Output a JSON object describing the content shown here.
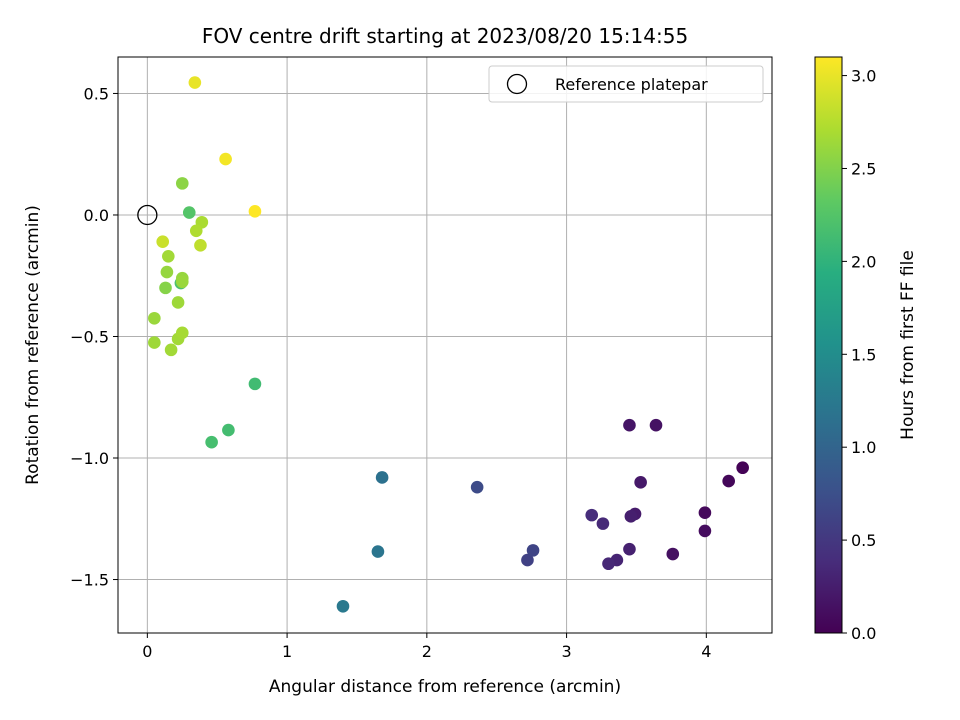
{
  "chart_data": {
    "type": "scatter",
    "title": "FOV centre drift starting at 2023/08/20 15:14:55",
    "xlabel": "Angular distance from reference (arcmin)",
    "ylabel": "Rotation from reference (arcmin)",
    "xlim": [
      -0.21,
      4.47
    ],
    "ylim": [
      -1.72,
      0.65
    ],
    "xticks": [
      0,
      1,
      2,
      3,
      4
    ],
    "xtick_labels": [
      "0",
      "1",
      "2",
      "3",
      "4"
    ],
    "yticks": [
      -1.5,
      -1.0,
      -0.5,
      0.0,
      0.5
    ],
    "ytick_labels": [
      "−1.5",
      "−1.0",
      "−0.5",
      "0.0",
      "0.5"
    ],
    "grid": true,
    "legend": {
      "position": "upper right",
      "entries": [
        "Reference platepar"
      ]
    },
    "reference_point": {
      "x": 0,
      "y": 0
    },
    "colorbar": {
      "label": "Hours from first FF file",
      "range": [
        0.0,
        3.1
      ],
      "ticks": [
        0.0,
        0.5,
        1.0,
        1.5,
        2.0,
        2.5,
        3.0
      ],
      "tick_labels": [
        "0.0",
        "0.5",
        "1.0",
        "1.5",
        "2.0",
        "2.5",
        "3.0"
      ],
      "colormap": "viridis"
    },
    "points": [
      {
        "x": 4.26,
        "y": -1.04,
        "hours": 0.02
      },
      {
        "x": 4.16,
        "y": -1.095,
        "hours": 0.05
      },
      {
        "x": 3.99,
        "y": -1.225,
        "hours": 0.07
      },
      {
        "x": 3.99,
        "y": -1.3,
        "hours": 0.1
      },
      {
        "x": 3.76,
        "y": -1.395,
        "hours": 0.13
      },
      {
        "x": 3.64,
        "y": -0.865,
        "hours": 0.15
      },
      {
        "x": 3.45,
        "y": -0.865,
        "hours": 0.18
      },
      {
        "x": 3.53,
        "y": -1.1,
        "hours": 0.21
      },
      {
        "x": 3.49,
        "y": -1.23,
        "hours": 0.23
      },
      {
        "x": 3.46,
        "y": -1.24,
        "hours": 0.26
      },
      {
        "x": 3.45,
        "y": -1.375,
        "hours": 0.28
      },
      {
        "x": 3.36,
        "y": -1.42,
        "hours": 0.31
      },
      {
        "x": 3.3,
        "y": -1.435,
        "hours": 0.34
      },
      {
        "x": 3.26,
        "y": -1.27,
        "hours": 0.36
      },
      {
        "x": 3.18,
        "y": -1.235,
        "hours": 0.39
      },
      {
        "x": 2.72,
        "y": -1.42,
        "hours": 0.6
      },
      {
        "x": 2.76,
        "y": -1.38,
        "hours": 0.63
      },
      {
        "x": 2.36,
        "y": -1.12,
        "hours": 0.7
      },
      {
        "x": 1.68,
        "y": -1.08,
        "hours": 1.15
      },
      {
        "x": 1.65,
        "y": -1.385,
        "hours": 1.2
      },
      {
        "x": 1.4,
        "y": -1.61,
        "hours": 1.25
      },
      {
        "x": 0.77,
        "y": -0.695,
        "hours": 2.12
      },
      {
        "x": 0.58,
        "y": -0.885,
        "hours": 2.14
      },
      {
        "x": 0.46,
        "y": -0.935,
        "hours": 2.16
      },
      {
        "x": 0.3,
        "y": 0.01,
        "hours": 2.25
      },
      {
        "x": 0.24,
        "y": -0.28,
        "hours": 2.2
      },
      {
        "x": 0.25,
        "y": 0.13,
        "hours": 2.55
      },
      {
        "x": 0.13,
        "y": -0.3,
        "hours": 2.52
      },
      {
        "x": 0.39,
        "y": -0.03,
        "hours": 2.7
      },
      {
        "x": 0.35,
        "y": -0.065,
        "hours": 2.72
      },
      {
        "x": 0.38,
        "y": -0.125,
        "hours": 2.8
      },
      {
        "x": 0.25,
        "y": -0.26,
        "hours": 2.6
      },
      {
        "x": 0.25,
        "y": -0.275,
        "hours": 2.62
      },
      {
        "x": 0.22,
        "y": -0.36,
        "hours": 2.64
      },
      {
        "x": 0.22,
        "y": -0.51,
        "hours": 2.66
      },
      {
        "x": 0.25,
        "y": -0.485,
        "hours": 2.68
      },
      {
        "x": 0.15,
        "y": -0.17,
        "hours": 2.66
      },
      {
        "x": 0.14,
        "y": -0.235,
        "hours": 2.6
      },
      {
        "x": 0.17,
        "y": -0.555,
        "hours": 2.66
      },
      {
        "x": 0.05,
        "y": -0.425,
        "hours": 2.62
      },
      {
        "x": 0.05,
        "y": -0.525,
        "hours": 2.64
      },
      {
        "x": 0.11,
        "y": -0.11,
        "hours": 2.85
      },
      {
        "x": 0.34,
        "y": 0.545,
        "hours": 3.0
      },
      {
        "x": 0.56,
        "y": 0.23,
        "hours": 3.05
      },
      {
        "x": 0.77,
        "y": 0.015,
        "hours": 3.1
      }
    ]
  }
}
